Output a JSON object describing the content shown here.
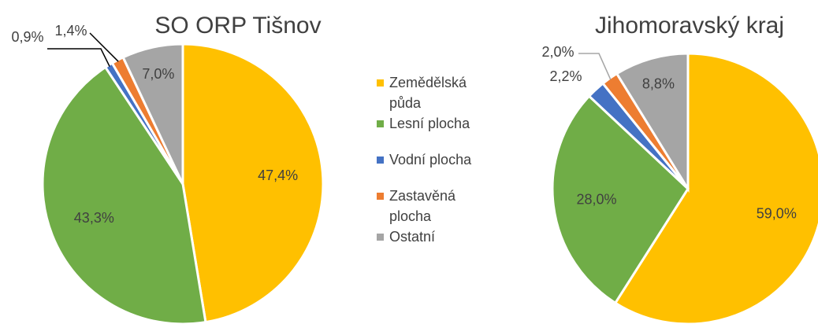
{
  "chart_data": [
    {
      "type": "pie",
      "title": "SO ORP Tišnov",
      "values": [
        47.4,
        43.3,
        0.9,
        1.4,
        7.0
      ],
      "value_labels": [
        "47,4%",
        "43,3%",
        "0,9%",
        "1,4%",
        "7,0%"
      ]
    },
    {
      "type": "pie",
      "title": "Jihomoravský kraj",
      "values": [
        59.0,
        28.0,
        2.2,
        2.0,
        8.8
      ],
      "value_labels": [
        "59,0%",
        "28,0%",
        "2,2%",
        "2,0%",
        "8,8%"
      ]
    }
  ],
  "legend": {
    "items": [
      "Zemědělská půda",
      "Lesní plocha",
      "Vodní plocha",
      "Zastavěná plocha",
      "Ostatní"
    ],
    "colors": [
      "#FFC000",
      "#70AD47",
      "#4472C4",
      "#ED7D31",
      "#A5A5A5"
    ]
  }
}
